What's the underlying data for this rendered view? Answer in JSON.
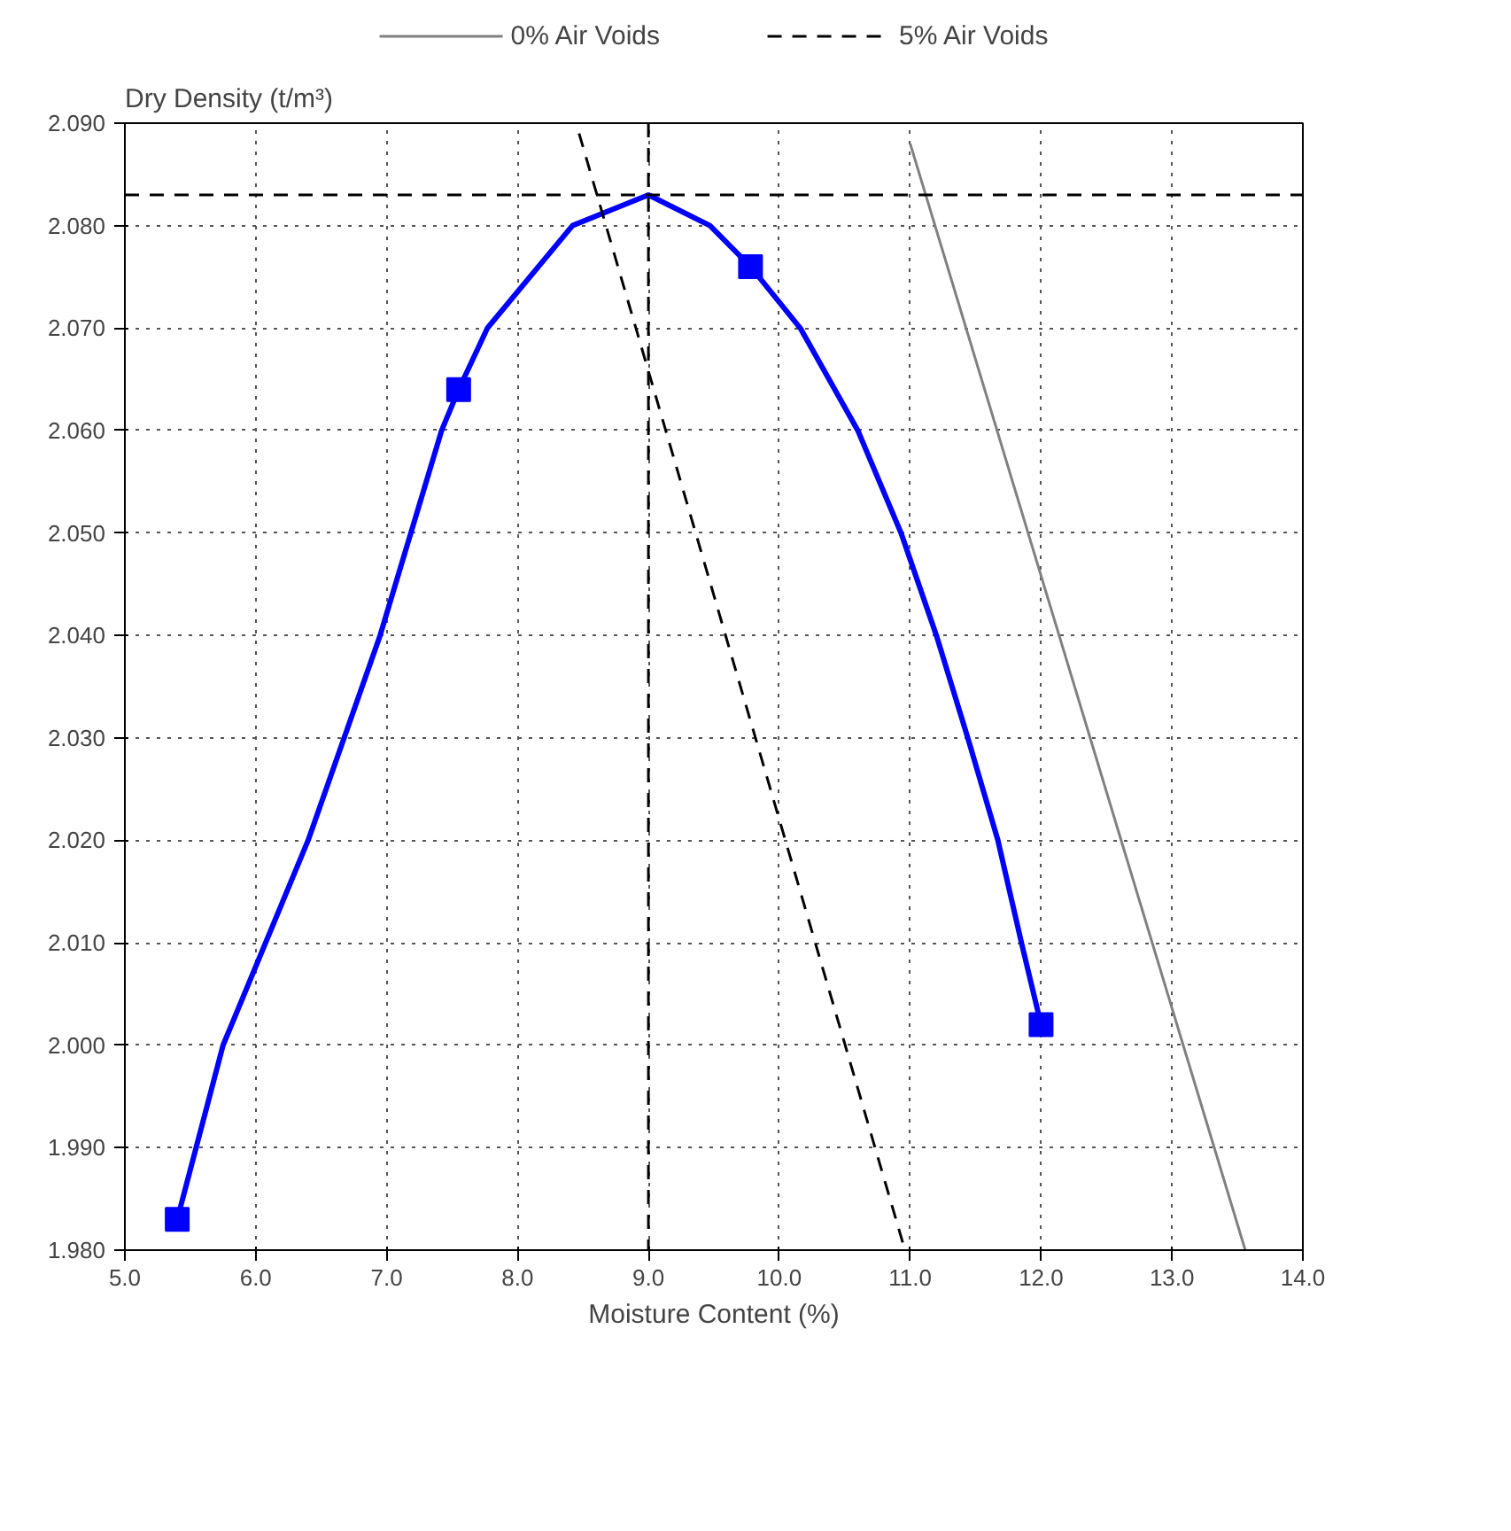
{
  "chart_data": {
    "type": "line",
    "xlabel": "Moisture Content (%)",
    "ylabel": "Dry Density (t/m³)",
    "xlim": [
      5.0,
      14.0
    ],
    "ylim": [
      1.98,
      2.09
    ],
    "xticks": [
      {
        "value": 5,
        "label": "5.0"
      },
      {
        "value": 6,
        "label": "6.0"
      },
      {
        "value": 7,
        "label": "7.0"
      },
      {
        "value": 8,
        "label": "8.0"
      },
      {
        "value": 9,
        "label": "9.0"
      },
      {
        "value": 10,
        "label": "10.0"
      },
      {
        "value": 11,
        "label": "11.0"
      },
      {
        "value": 12,
        "label": "12.0"
      },
      {
        "value": 13,
        "label": "13.0"
      },
      {
        "value": 14,
        "label": "14.0"
      }
    ],
    "yticks": [
      {
        "value": 1.98,
        "label": "1.980"
      },
      {
        "value": 1.99,
        "label": "1.990"
      },
      {
        "value": 2.0,
        "label": "2.000"
      },
      {
        "value": 2.01,
        "label": "2.010"
      },
      {
        "value": 2.02,
        "label": "2.020"
      },
      {
        "value": 2.03,
        "label": "2.030"
      },
      {
        "value": 2.04,
        "label": "2.040"
      },
      {
        "value": 2.05,
        "label": "2.050"
      },
      {
        "value": 2.06,
        "label": "2.060"
      },
      {
        "value": 2.07,
        "label": "2.070"
      },
      {
        "value": 2.08,
        "label": "2.080"
      },
      {
        "value": 2.09,
        "label": "2.090"
      }
    ],
    "grid": true,
    "legend": "top",
    "series": [
      {
        "color": "#0000ff",
        "marker": "none",
        "line_style": "solid",
        "x": [
          5.4,
          5.75,
          6.4,
          6.95,
          7.42,
          7.55,
          7.77,
          8.42,
          9.0,
          9.47,
          9.78,
          10.16,
          10.6,
          10.93,
          11.2,
          11.44,
          11.67,
          11.85,
          12.0
        ],
        "values": [
          1.983,
          2.0,
          2.02,
          2.04,
          2.06,
          2.064,
          2.07,
          2.08,
          2.083,
          2.08,
          2.076,
          2.07,
          2.06,
          2.05,
          2.04,
          2.03,
          2.02,
          2.01,
          2.002
        ]
      },
      {
        "type": "scatter",
        "color": "#0000ff",
        "marker": "square",
        "x": [
          5.4,
          7.55,
          9.78,
          12.0
        ],
        "values": [
          1.983,
          2.064,
          2.076,
          2.002
        ]
      },
      {
        "name": "0% Air Voids",
        "color": "#808080",
        "marker": "none",
        "line_style": "solid",
        "x": [
          11.0,
          13.56
        ],
        "values": [
          2.088,
          1.98
        ]
      },
      {
        "name": "5% Air Voids",
        "color": "#000000",
        "marker": "none",
        "line_style": "dashed",
        "x": [
          8.47,
          10.96
        ],
        "values": [
          2.089,
          1.98
        ]
      }
    ],
    "ref_lines": [
      {
        "axis": "y",
        "value": 2.083,
        "label": null,
        "color": "#000000",
        "line_style": "dashed"
      },
      {
        "axis": "x",
        "value": 9.0,
        "label": null,
        "color": "#000000",
        "line_style": "dashed"
      }
    ]
  }
}
